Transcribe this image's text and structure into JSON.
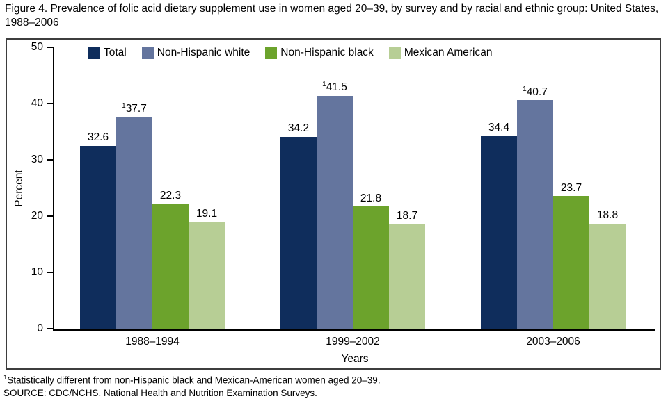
{
  "figure": {
    "title": "Figure 4. Prevalence of folic acid dietary supplement use in women aged 20–39, by survey and by racial and ethnic group: United States, 1988–2006"
  },
  "chart_data": {
    "type": "bar",
    "categories": [
      "1988–1994",
      "1999–2002",
      "2003–2006"
    ],
    "series": [
      {
        "name": "Total",
        "color": "#0f2d5c",
        "values": [
          32.6,
          34.2,
          34.4
        ],
        "superscript": ""
      },
      {
        "name": "Non-Hispanic white",
        "color": "#64759e",
        "values": [
          37.7,
          41.5,
          40.7
        ],
        "superscript": "1"
      },
      {
        "name": "Non-Hispanic black",
        "color": "#6ca32c",
        "values": [
          22.3,
          21.8,
          23.7
        ],
        "superscript": ""
      },
      {
        "name": "Mexican American",
        "color": "#b7ce95",
        "values": [
          19.1,
          18.7,
          18.8
        ],
        "superscript": ""
      }
    ],
    "xlabel": "Years",
    "ylabel": "Percent",
    "ylim": [
      0,
      50
    ],
    "yticks": [
      0,
      10,
      20,
      30,
      40,
      50
    ],
    "grid": false,
    "legend_position": "top"
  },
  "footnotes": {
    "note1_superscript": "1",
    "note1": "Statistically different from non-Hispanic black and Mexican-American women aged 20–39.",
    "source": "SOURCE: CDC/NCHS, National Health and Nutrition Examination Surveys."
  }
}
